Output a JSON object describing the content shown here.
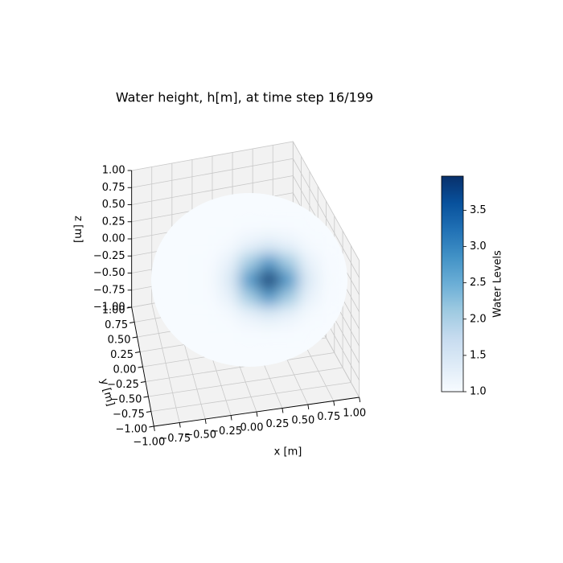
{
  "chart_data": {
    "type": "surface3d",
    "title": "Water height, h[m], at time step 16/199",
    "xlabel": "x [m]",
    "ylabel": "y [m]",
    "zlabel": "z [m]",
    "colormap": "Blues",
    "x": [
      -1,
      -0.8,
      -0.6,
      -0.4,
      -0.2,
      0,
      0.2,
      0.4,
      0.6,
      0.8,
      1
    ],
    "y": [
      -1,
      -0.8,
      -0.6,
      -0.4,
      -0.2,
      0,
      0.2,
      0.4,
      0.6,
      0.8,
      1
    ],
    "values": [
      [
        null,
        null,
        null,
        null,
        null,
        1.0,
        null,
        null,
        null,
        null,
        null
      ],
      [
        null,
        null,
        1.0,
        1.0,
        1.0,
        1.0,
        1.0,
        1.0,
        1.0,
        null,
        null
      ],
      [
        null,
        1.0,
        1.0,
        1.0,
        1.0,
        1.02,
        1.03,
        1.02,
        1.0,
        1.0,
        null
      ],
      [
        null,
        1.0,
        1.0,
        1.0,
        1.05,
        1.24,
        1.4,
        1.24,
        1.05,
        1.0,
        null
      ],
      [
        null,
        1.0,
        1.0,
        1.02,
        1.24,
        2.09,
        2.8,
        2.09,
        1.24,
        1.02,
        null
      ],
      [
        1.0,
        1.0,
        1.0,
        1.03,
        1.4,
        2.8,
        3.97,
        2.8,
        1.4,
        1.03,
        1.0
      ],
      [
        null,
        1.0,
        1.0,
        1.02,
        1.24,
        2.09,
        2.8,
        2.09,
        1.24,
        1.02,
        null
      ],
      [
        null,
        1.0,
        1.0,
        1.0,
        1.05,
        1.24,
        1.4,
        1.24,
        1.05,
        1.0,
        null
      ],
      [
        null,
        1.0,
        1.0,
        1.0,
        1.0,
        1.02,
        1.03,
        1.02,
        1.0,
        1.0,
        null
      ],
      [
        null,
        null,
        1.0,
        1.0,
        1.0,
        1.0,
        1.0,
        1.0,
        1.0,
        null,
        null
      ],
      [
        null,
        null,
        null,
        null,
        null,
        1.0,
        null,
        null,
        null,
        null,
        null
      ]
    ],
    "xlim": [
      -1,
      1
    ],
    "ylim": [
      -1,
      1
    ],
    "zlim": [
      -1,
      1
    ],
    "xticks": [
      {
        "value": -1,
        "label": "−1.00"
      },
      {
        "value": -0.75,
        "label": "−0.75"
      },
      {
        "value": -0.5,
        "label": "−0.50"
      },
      {
        "value": -0.25,
        "label": "−0.25"
      },
      {
        "value": 0,
        "label": "0.00"
      },
      {
        "value": 0.25,
        "label": "0.25"
      },
      {
        "value": 0.5,
        "label": "0.50"
      },
      {
        "value": 0.75,
        "label": "0.75"
      },
      {
        "value": 1,
        "label": "1.00"
      }
    ],
    "yticks": [
      {
        "value": -1,
        "label": "−1.00"
      },
      {
        "value": -0.75,
        "label": "−0.75"
      },
      {
        "value": -0.5,
        "label": "−0.50"
      },
      {
        "value": -0.25,
        "label": "−0.25"
      },
      {
        "value": 0,
        "label": "0.00"
      },
      {
        "value": 0.25,
        "label": "0.25"
      },
      {
        "value": 0.5,
        "label": "0.50"
      },
      {
        "value": 0.75,
        "label": "0.75"
      },
      {
        "value": 1,
        "label": "1.00"
      }
    ],
    "zticks": [
      {
        "value": -1,
        "label": "−1.00"
      },
      {
        "value": -0.75,
        "label": "−0.75"
      },
      {
        "value": -0.5,
        "label": "−0.50"
      },
      {
        "value": -0.25,
        "label": "−0.25"
      },
      {
        "value": 0,
        "label": "0.00"
      },
      {
        "value": 0.25,
        "label": "0.25"
      },
      {
        "value": 0.5,
        "label": "0.50"
      },
      {
        "value": 0.75,
        "label": "0.75"
      },
      {
        "value": 1,
        "label": "1.00"
      }
    ],
    "grid": true,
    "colorbar": {
      "label": "Water Levels",
      "lim": [
        1.0,
        3.97
      ],
      "ticks": [
        {
          "value": 1,
          "label": "1.0"
        },
        {
          "value": 1.5,
          "label": "1.5"
        },
        {
          "value": 2,
          "label": "2.0"
        },
        {
          "value": 2.5,
          "label": "2.5"
        },
        {
          "value": 3,
          "label": "3.0"
        },
        {
          "value": 3.5,
          "label": "3.5"
        }
      ]
    }
  }
}
